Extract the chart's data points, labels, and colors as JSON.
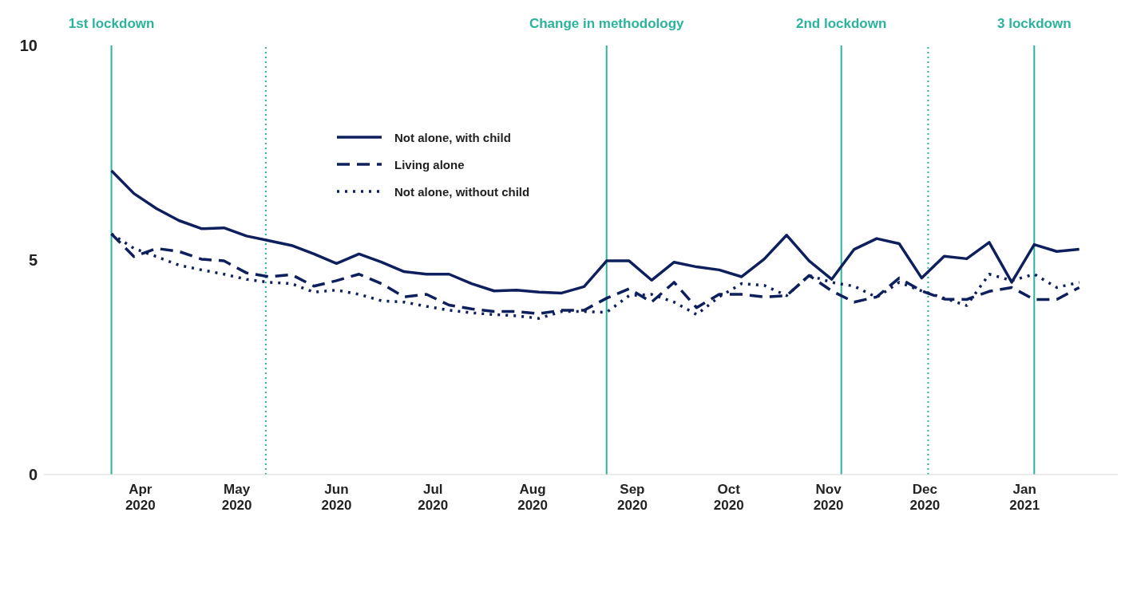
{
  "chart_data": {
    "type": "line",
    "x": [
      "2020-03-23",
      "2020-03-30",
      "2020-04-06",
      "2020-04-13",
      "2020-04-20",
      "2020-04-27",
      "2020-05-04",
      "2020-05-11",
      "2020-05-18",
      "2020-05-25",
      "2020-06-01",
      "2020-06-08",
      "2020-06-15",
      "2020-06-22",
      "2020-06-29",
      "2020-07-06",
      "2020-07-13",
      "2020-07-20",
      "2020-07-27",
      "2020-08-03",
      "2020-08-10",
      "2020-08-17",
      "2020-08-24",
      "2020-08-31",
      "2020-09-07",
      "2020-09-14",
      "2020-09-21",
      "2020-09-28",
      "2020-10-05",
      "2020-10-12",
      "2020-10-19",
      "2020-10-26",
      "2020-11-02",
      "2020-11-09",
      "2020-11-16",
      "2020-11-23",
      "2020-11-30",
      "2020-12-07",
      "2020-12-14",
      "2020-12-21",
      "2020-12-28",
      "2021-01-04",
      "2021-01-11",
      "2021-01-18"
    ],
    "series": [
      {
        "name": "Not alone, with child",
        "color": "#0d1f5c",
        "line_style": "solid",
        "values": [
          7.08,
          6.55,
          6.2,
          5.92,
          5.73,
          5.75,
          5.56,
          5.45,
          5.34,
          5.14,
          4.92,
          5.14,
          4.95,
          4.73,
          4.67,
          4.67,
          4.45,
          4.28,
          4.3,
          4.25,
          4.23,
          4.38,
          4.98,
          4.98,
          4.53,
          4.95,
          4.84,
          4.77,
          4.61,
          5.02,
          5.58,
          4.98,
          4.55,
          5.25,
          5.5,
          5.38,
          4.58,
          5.09,
          5.03,
          5.41,
          4.48,
          5.36,
          5.2,
          5.25
        ]
      },
      {
        "name": "Living alone",
        "color": "#0d1f5c",
        "line_style": "dashed",
        "values": [
          5.61,
          5.08,
          5.27,
          5.2,
          5.02,
          4.98,
          4.7,
          4.61,
          4.66,
          4.39,
          4.52,
          4.67,
          4.45,
          4.14,
          4.2,
          3.95,
          3.86,
          3.8,
          3.8,
          3.75,
          3.83,
          3.83,
          4.11,
          4.33,
          4.02,
          4.48,
          3.89,
          4.2,
          4.2,
          4.14,
          4.17,
          4.64,
          4.28,
          4.02,
          4.14,
          4.58,
          4.28,
          4.09,
          4.08,
          4.27,
          4.36,
          4.08,
          4.08,
          4.36
        ]
      },
      {
        "name": "Not alone, without child",
        "color": "#0d1f5c",
        "line_style": "dotted",
        "values": [
          5.61,
          5.27,
          5.08,
          4.88,
          4.77,
          4.67,
          4.55,
          4.48,
          4.45,
          4.25,
          4.3,
          4.2,
          4.05,
          4.02,
          3.92,
          3.83,
          3.77,
          3.73,
          3.7,
          3.64,
          3.8,
          3.8,
          3.78,
          4.17,
          4.2,
          4.02,
          3.73,
          4.14,
          4.45,
          4.41,
          4.17,
          4.64,
          4.48,
          4.39,
          4.13,
          4.48,
          4.28,
          4.11,
          3.94,
          4.67,
          4.52,
          4.67,
          4.36,
          4.48
        ]
      }
    ],
    "xlim": [
      "2020-03-02",
      "2021-01-30"
    ],
    "xticks": [
      {
        "value": "2020-04-01",
        "label": "Apr 2020"
      },
      {
        "value": "2020-05-01",
        "label": "May 2020"
      },
      {
        "value": "2020-06-01",
        "label": "Jun 2020"
      },
      {
        "value": "2020-07-01",
        "label": "Jul 2020"
      },
      {
        "value": "2020-08-01",
        "label": "Aug 2020"
      },
      {
        "value": "2020-09-01",
        "label": "Sep 2020"
      },
      {
        "value": "2020-10-01",
        "label": "Oct 2020"
      },
      {
        "value": "2020-11-01",
        "label": "Nov 2020"
      },
      {
        "value": "2020-12-01",
        "label": "Dec 2020"
      },
      {
        "value": "2021-01-01",
        "label": "Jan 2021"
      }
    ],
    "ylim": [
      0,
      10
    ],
    "yticks": [
      0,
      5,
      10
    ],
    "ref_lines": [
      {
        "axis": "x",
        "value": "2020-03-23",
        "label": "1st lockdown",
        "color": "#2bb39d",
        "line_style": "solid"
      },
      {
        "axis": "x",
        "value": "2020-05-10",
        "label": null,
        "color": "#2bb39d",
        "line_style": "dotted"
      },
      {
        "axis": "x",
        "value": "2020-08-24",
        "label": "Change in methodology",
        "color": "#2bb39d",
        "line_style": "solid"
      },
      {
        "axis": "x",
        "value": "2020-11-05",
        "label": "2nd lockdown",
        "color": "#2bb39d",
        "line_style": "solid"
      },
      {
        "axis": "x",
        "value": "2020-12-02",
        "label": null,
        "color": "#2bb39d",
        "line_style": "dotted"
      },
      {
        "axis": "x",
        "value": "2021-01-04",
        "label": "3 lockdown",
        "color": "#2bb39d",
        "line_style": "solid"
      }
    ],
    "legend": "top",
    "marker": "none"
  }
}
